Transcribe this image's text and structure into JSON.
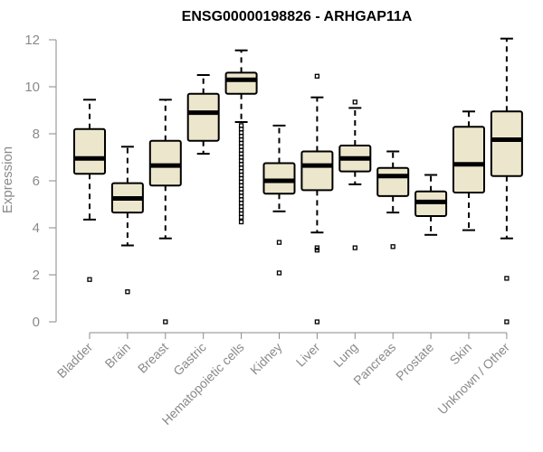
{
  "chart_data": {
    "type": "boxplot",
    "title": "ENSG00000198826 - ARHGAP11A",
    "xlabel": "",
    "ylabel": "Expression",
    "ylim": [
      0,
      12
    ],
    "yticks": [
      0,
      2,
      4,
      6,
      8,
      10,
      12
    ],
    "box_color": "#ece6cc",
    "categories": [
      "Bladder",
      "Brain",
      "Breast",
      "Gastric",
      "Hematopoietic cells",
      "Kidney",
      "Liver",
      "Lung",
      "Pancreas",
      "Prostate",
      "Skin",
      "Unknown / Other"
    ],
    "series": [
      {
        "name": "Bladder",
        "min": 4.35,
        "q1": 6.3,
        "median": 6.95,
        "q3": 8.2,
        "max": 9.45,
        "outliers": [
          1.8
        ]
      },
      {
        "name": "Brain",
        "min": 3.25,
        "q1": 4.65,
        "median": 5.25,
        "q3": 5.9,
        "max": 7.45,
        "outliers": [
          1.28
        ]
      },
      {
        "name": "Breast",
        "min": 3.55,
        "q1": 5.8,
        "median": 6.65,
        "q3": 7.7,
        "max": 9.45,
        "outliers": [
          0.0
        ]
      },
      {
        "name": "Gastric",
        "min": 7.15,
        "q1": 7.7,
        "median": 8.9,
        "q3": 9.7,
        "max": 10.5,
        "outliers": []
      },
      {
        "name": "Hematopoietic cells",
        "min": 8.5,
        "q1": 9.7,
        "median": 10.3,
        "q3": 10.6,
        "max": 11.55,
        "outliers": [
          8.35,
          8.2,
          8.05,
          7.9,
          7.75,
          7.6,
          7.45,
          7.3,
          7.15,
          7.0,
          6.85,
          6.7,
          6.55,
          6.4,
          6.25,
          6.1,
          5.95,
          5.8,
          5.65,
          5.5,
          5.35,
          5.2,
          5.05,
          4.9,
          4.75,
          4.6,
          4.45,
          4.25
        ]
      },
      {
        "name": "Kidney",
        "min": 4.7,
        "q1": 5.45,
        "median": 6.0,
        "q3": 6.75,
        "max": 8.35,
        "outliers": [
          3.38,
          2.08
        ]
      },
      {
        "name": "Liver",
        "min": 3.8,
        "q1": 5.6,
        "median": 6.65,
        "q3": 7.25,
        "max": 9.55,
        "outliers": [
          10.45,
          3.15,
          3.05,
          0.0
        ]
      },
      {
        "name": "Lung",
        "min": 5.85,
        "q1": 6.4,
        "median": 6.95,
        "q3": 7.5,
        "max": 9.1,
        "outliers": [
          9.35,
          3.15
        ]
      },
      {
        "name": "Pancreas",
        "min": 4.65,
        "q1": 5.35,
        "median": 6.2,
        "q3": 6.55,
        "max": 7.25,
        "outliers": [
          3.2
        ]
      },
      {
        "name": "Prostate",
        "min": 3.7,
        "q1": 4.5,
        "median": 5.1,
        "q3": 5.55,
        "max": 6.25,
        "outliers": []
      },
      {
        "name": "Skin",
        "min": 3.9,
        "q1": 5.5,
        "median": 6.7,
        "q3": 8.3,
        "max": 8.95,
        "outliers": []
      },
      {
        "name": "Unknown / Other",
        "min": 3.55,
        "q1": 6.2,
        "median": 7.75,
        "q3": 8.95,
        "max": 12.05,
        "outliers": [
          1.85,
          0.0
        ]
      }
    ]
  }
}
